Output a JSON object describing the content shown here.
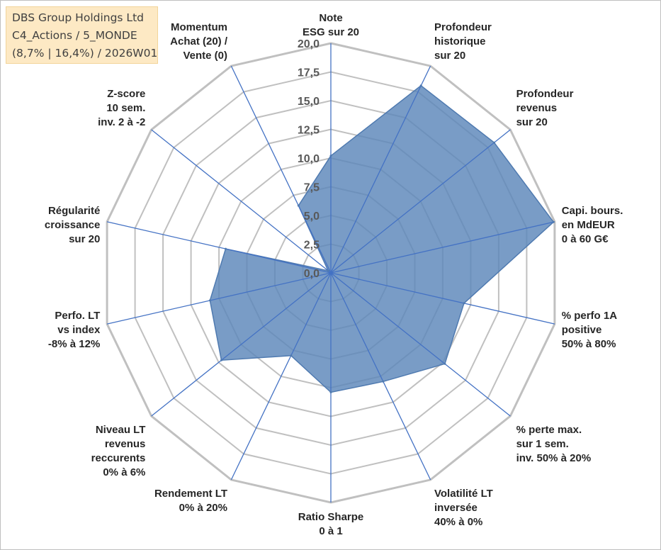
{
  "chart_data": {
    "type": "radar",
    "title_lines": [
      "DBS Group Holdings Ltd",
      "C4_Actions / 5_MONDE",
      "(8,7% | 16,4%) / 2026W01"
    ],
    "rmin": 0,
    "rmax": 20,
    "ticks": [
      "0,0",
      "2,5",
      "5,0",
      "7,5",
      "10,0",
      "12,5",
      "15,0",
      "17,5",
      "20,0"
    ],
    "tick_values": [
      0,
      2.5,
      5,
      7.5,
      10,
      12.5,
      15,
      17.5,
      20
    ],
    "categories": [
      {
        "lines": [
          "Note",
          "ESG sur 20"
        ]
      },
      {
        "lines": [
          "Profondeur",
          "historique",
          "sur 20"
        ]
      },
      {
        "lines": [
          "Profondeur",
          "revenus",
          "sur 20"
        ]
      },
      {
        "lines": [
          "Capi. bours.",
          "en MdEUR",
          "0 à 60 G€"
        ]
      },
      {
        "lines": [
          "% perfo 1A",
          "positive",
          "50% à 80%"
        ]
      },
      {
        "lines": [
          "% perte max.",
          "sur 1 sem.",
          "inv. 50% à 20%"
        ]
      },
      {
        "lines": [
          "Volatilité LT",
          "inversée",
          "40% à 0%"
        ]
      },
      {
        "lines": [
          "Ratio Sharpe",
          "0 à 1"
        ]
      },
      {
        "lines": [
          "Rendement LT",
          "0% à 20%"
        ]
      },
      {
        "lines": [
          "Niveau LT",
          "revenus",
          "reccurents",
          "0% à 6%"
        ]
      },
      {
        "lines": [
          "Perfo. LT",
          "vs index",
          "-8% à 12%"
        ]
      },
      {
        "lines": [
          "Régularité",
          "croissance",
          "sur 20"
        ]
      },
      {
        "lines": [
          "Z-score",
          "10 sem.",
          "inv. 2 à -2"
        ]
      },
      {
        "lines": [
          "Momentum",
          "Achat (20) /",
          "Vente (0)"
        ]
      }
    ],
    "series": [
      {
        "values": [
          10.2,
          18.1,
          18.2,
          19.9,
          11.9,
          12.7,
          10.5,
          10.4,
          8.0,
          12.2,
          10.8,
          9.4,
          0.3,
          6.5
        ]
      }
    ],
    "grid": true,
    "legend": "none",
    "colors": {
      "fill": "#5b86b9",
      "fill_opacity": 0.82,
      "series_line": "#4f7ab0",
      "spoke": "#4472c4",
      "grid": "#c0c0c0",
      "title_bg": "#fde9c4"
    }
  }
}
